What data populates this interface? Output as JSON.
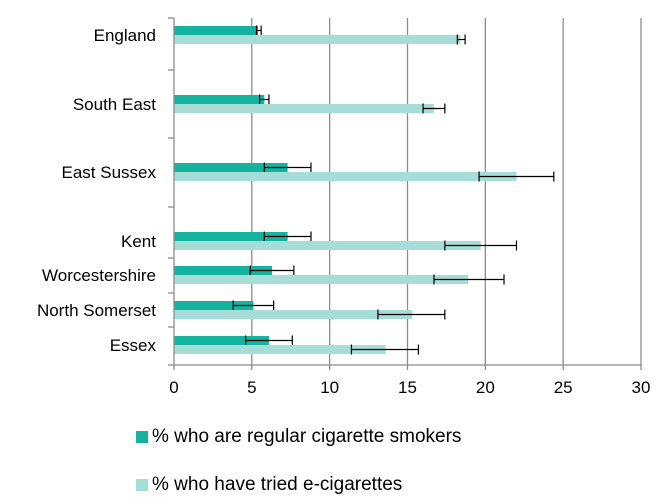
{
  "chart_data": {
    "type": "bar",
    "orientation": "horizontal",
    "title": "",
    "xlabel": "",
    "ylabel": "",
    "xlim": [
      0,
      30
    ],
    "x_ticks": [
      0,
      5,
      10,
      15,
      20,
      25,
      30
    ],
    "grid": "vertical",
    "legend_position": "bottom",
    "categories": [
      "England",
      "South East",
      "East Sussex",
      "Kent",
      "Worcestershire",
      "North Somerset",
      "Essex"
    ],
    "series": [
      {
        "name": "% who are regular cigarette smokers",
        "color": "#13b3a0",
        "values": [
          5.4,
          5.8,
          7.3,
          7.3,
          6.3,
          5.1,
          6.1
        ],
        "error_low": [
          5.3,
          5.5,
          5.8,
          5.8,
          4.9,
          3.8,
          4.6
        ],
        "error_high": [
          5.6,
          6.1,
          8.8,
          8.8,
          7.7,
          6.4,
          7.6
        ]
      },
      {
        "name": "% who have tried e-cigarettes",
        "color": "#a6ddd6",
        "values": [
          18.4,
          16.7,
          22.0,
          19.7,
          18.9,
          15.3,
          13.6
        ],
        "error_low": [
          18.2,
          16.0,
          19.6,
          17.4,
          16.7,
          13.1,
          11.4
        ],
        "error_high": [
          18.7,
          17.4,
          24.4,
          22.0,
          21.2,
          17.4,
          15.7
        ]
      }
    ]
  },
  "legend": {
    "items": [
      {
        "label": "% who are regular cigarette smokers",
        "color": "#13b3a0"
      },
      {
        "label": "% who have tried e-cigarettes",
        "color": "#a6ddd6"
      }
    ]
  }
}
